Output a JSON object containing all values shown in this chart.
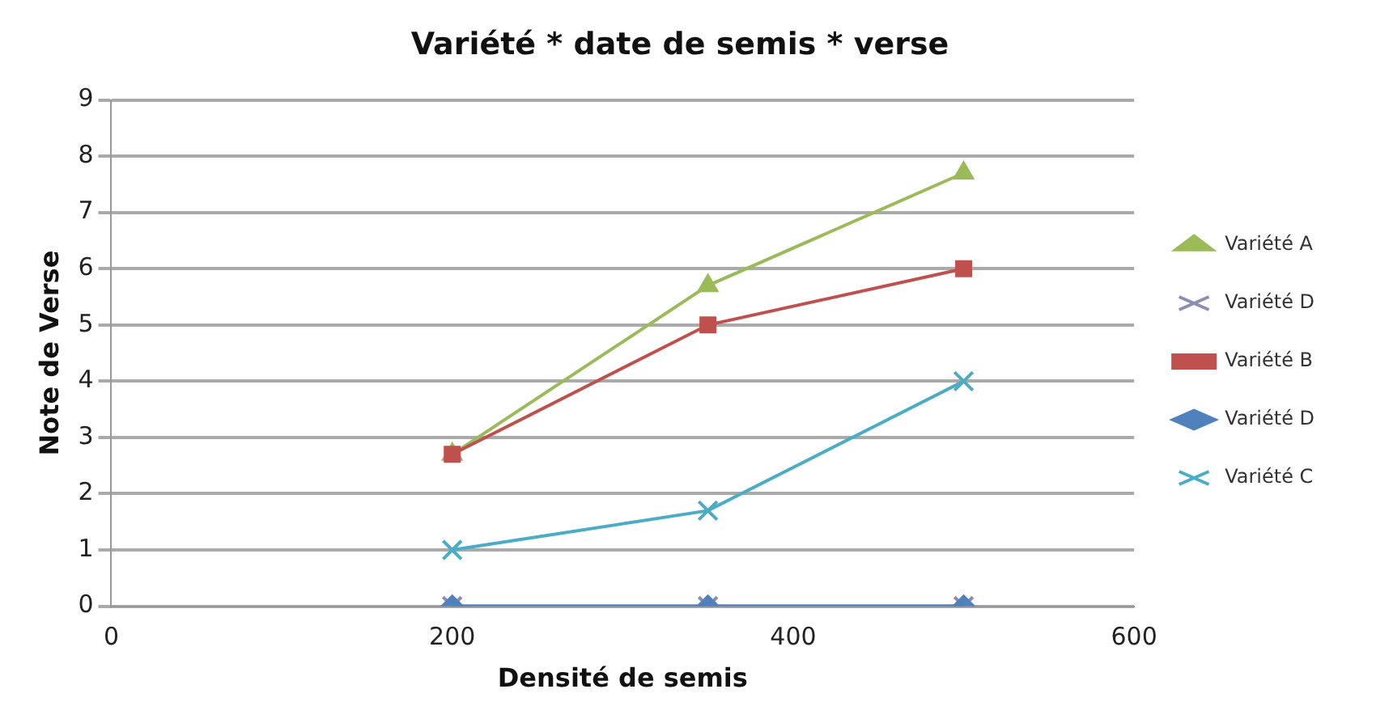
{
  "chart_data": {
    "type": "line",
    "title": "Variété * date de semis * verse",
    "xlabel": "Densité de semis",
    "ylabel": "Note de Verse",
    "x": [
      200,
      350,
      500
    ],
    "xlim": [
      0,
      600
    ],
    "xticks": [
      0,
      200,
      400,
      600
    ],
    "ylim": [
      0,
      9
    ],
    "yticks": [
      0,
      1,
      2,
      3,
      4,
      5,
      6,
      7,
      8,
      9
    ],
    "grid": "y",
    "legend": "right",
    "series": [
      {
        "name": "Variété A",
        "color": "#9bbb59",
        "marker": "triangle",
        "values": [
          2.7,
          5.7,
          7.7
        ]
      },
      {
        "name": "Variété D",
        "color": "#8c8cb4",
        "marker": "cross",
        "values": [
          0,
          0,
          0
        ]
      },
      {
        "name": "Variété B",
        "color": "#c0504d",
        "marker": "square",
        "values": [
          2.7,
          5,
          6
        ]
      },
      {
        "name": "Variété D",
        "color": "#4f81bd",
        "marker": "diamond",
        "values": [
          0,
          0,
          0
        ]
      },
      {
        "name": "Variété C",
        "color": "#4bacc6",
        "marker": "cross",
        "values": [
          1,
          1.7,
          4
        ]
      }
    ]
  }
}
